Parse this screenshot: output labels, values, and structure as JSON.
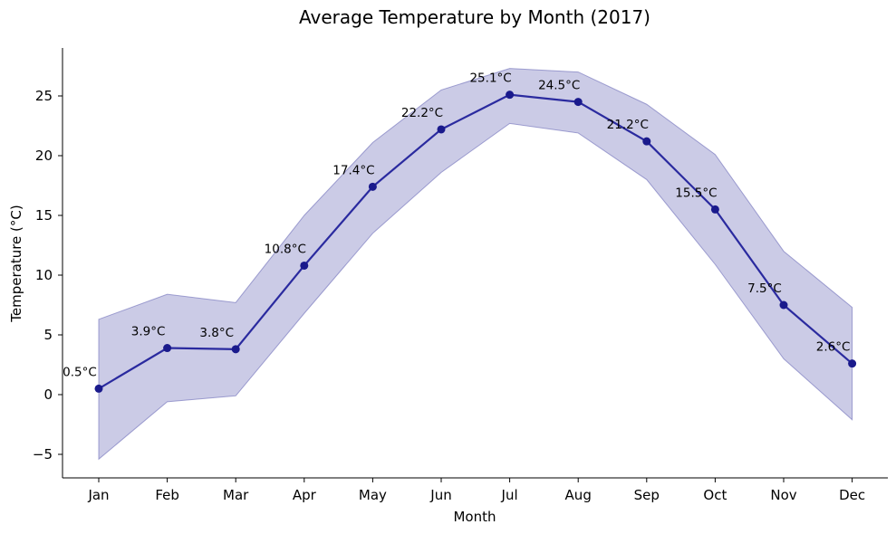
{
  "chart_data": {
    "type": "line",
    "title": "Average Temperature by Month (2017)",
    "xlabel": "Month",
    "ylabel": "Temperature (°C)",
    "categories": [
      "Jan",
      "Feb",
      "Mar",
      "Apr",
      "May",
      "Jun",
      "Jul",
      "Aug",
      "Sep",
      "Oct",
      "Nov",
      "Dec"
    ],
    "values": [
      0.5,
      3.9,
      3.8,
      10.8,
      17.4,
      22.2,
      25.1,
      24.5,
      21.2,
      15.5,
      7.5,
      2.6
    ],
    "data_labels": [
      "0.5°C",
      "3.9°C",
      "3.8°C",
      "10.8°C",
      "17.4°C",
      "22.2°C",
      "25.1°C",
      "24.5°C",
      "21.2°C",
      "15.5°C",
      "7.5°C",
      "2.6°C"
    ],
    "band_upper": [
      6.3,
      8.4,
      7.7,
      15.0,
      21.1,
      25.5,
      27.3,
      27.0,
      24.3,
      20.1,
      12.0,
      7.3
    ],
    "band_lower": [
      -5.4,
      -0.6,
      -0.1,
      6.8,
      13.5,
      18.6,
      22.7,
      21.9,
      18.0,
      10.9,
      3.0,
      -2.1
    ],
    "ylim": [
      -7,
      29
    ],
    "yticks": [
      -5,
      0,
      5,
      10,
      15,
      20,
      25
    ],
    "ytick_labels": [
      "−5",
      "0",
      "5",
      "10",
      "15",
      "20",
      "25"
    ],
    "grid": false,
    "colors": {
      "line": "#2a2a9f",
      "marker": "#1a1a8c",
      "band": "#8c8cc8",
      "band_edge": "#6a6ab8"
    }
  }
}
